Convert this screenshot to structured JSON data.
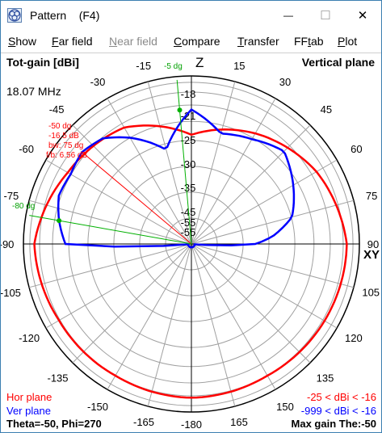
{
  "window": {
    "title": "Pattern    (F4)",
    "minimize_glyph": "—",
    "maximize_glyph": "☐",
    "close_glyph": "✕"
  },
  "menu": [
    {
      "label": "Show",
      "accel": "S",
      "enabled": true
    },
    {
      "label": "Far field",
      "accel": "F",
      "enabled": true
    },
    {
      "label": "Near field",
      "accel": "N",
      "enabled": false
    },
    {
      "label": "Compare",
      "accel": "C",
      "enabled": true
    },
    {
      "label": "Transfer",
      "accel": "T",
      "enabled": true
    },
    {
      "label": "FFtab",
      "accel": "t",
      "enabled": true
    },
    {
      "label": "Plot",
      "accel": "P",
      "enabled": true
    }
  ],
  "plot": {
    "header_left": "Tot-gain [dBi]",
    "header_right": "Vertical plane",
    "frequency": "18.07 MHz",
    "axis_z": "Z",
    "axis_xy": "XY",
    "angle_labels": [
      "-15",
      "15",
      "-30",
      "30",
      "-45",
      "45",
      "-60",
      "60",
      "-75",
      "75",
      "-90",
      "90",
      "-105",
      "105",
      "-120",
      "120",
      "-135",
      "135",
      "-150",
      "150",
      "-165",
      "165",
      "-180"
    ],
    "radial_labels": [
      "-18",
      "-21",
      "-25",
      "-30",
      "-35",
      "-45",
      "-55",
      "-55"
    ],
    "cursor_annotation": [
      "-50 dg",
      "-16.5 dB",
      "bw: 75 dg",
      "f/b: 6.56 dB"
    ],
    "green_marker_top": "-5 dg",
    "green_marker_left": "-80 dg",
    "legend": {
      "hor_plane": "Hor plane",
      "ver_plane": "Ver plane",
      "hor_range": "-25 < dBi < -16",
      "ver_range": "-999 < dBi < -16"
    },
    "footer_left": "Theta=-50, Phi=270",
    "footer_right": "Max gain The:-50",
    "colors": {
      "hor_plane": "#ff0000",
      "ver_plane": "#0000ff",
      "marker": "#00b000",
      "grid": "#a0a0a0",
      "window_border": "#3c7fb1"
    }
  }
}
